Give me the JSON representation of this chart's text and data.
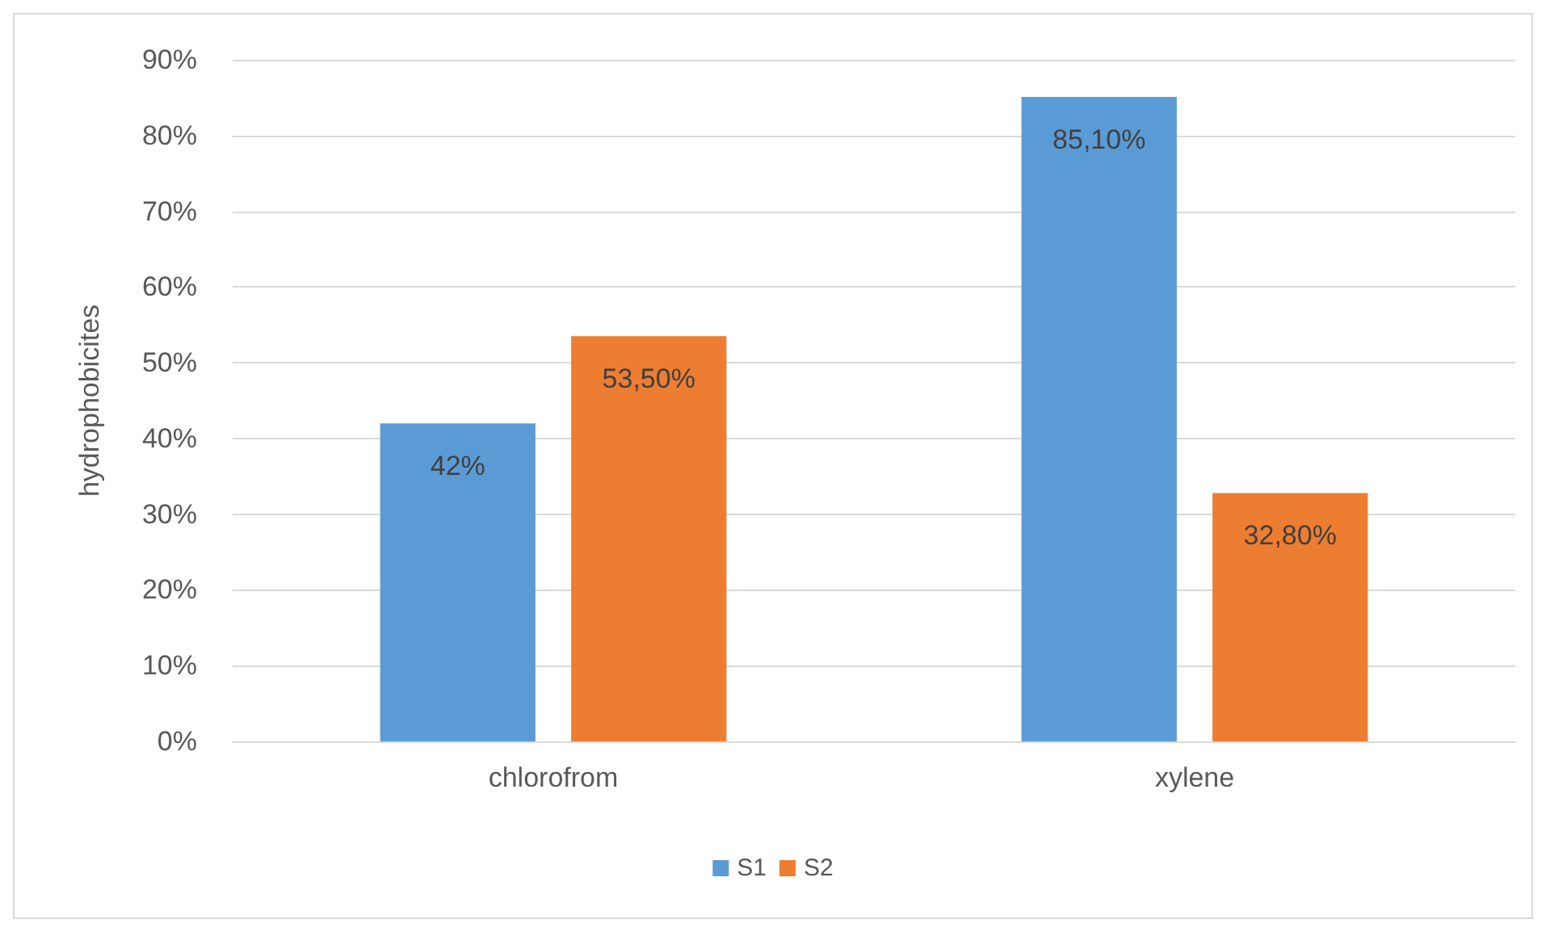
{
  "chart_data": {
    "type": "bar",
    "ylabel": "hydrophobicites",
    "categories": [
      "chlorofrom",
      "xylene"
    ],
    "series": [
      {
        "name": "S1",
        "color": "#5b9bd5",
        "values": [
          42,
          85.1
        ],
        "value_labels": [
          "42%",
          "85,10%"
        ]
      },
      {
        "name": "S2",
        "color": "#ed7d31",
        "values": [
          53.5,
          32.8
        ],
        "value_labels": [
          "53,50%",
          "32,80%"
        ]
      }
    ],
    "ylim": [
      0,
      90
    ],
    "yticks": [
      {
        "value": 0,
        "label": "0%"
      },
      {
        "value": 10,
        "label": "10%"
      },
      {
        "value": 20,
        "label": "20%"
      },
      {
        "value": 30,
        "label": "30%"
      },
      {
        "value": 40,
        "label": "40%"
      },
      {
        "value": 50,
        "label": "50%"
      },
      {
        "value": 60,
        "label": "60%"
      },
      {
        "value": 70,
        "label": "70%"
      },
      {
        "value": 80,
        "label": "80%"
      },
      {
        "value": 90,
        "label": "90%"
      }
    ],
    "grid": "y",
    "legend": "bottom"
  }
}
